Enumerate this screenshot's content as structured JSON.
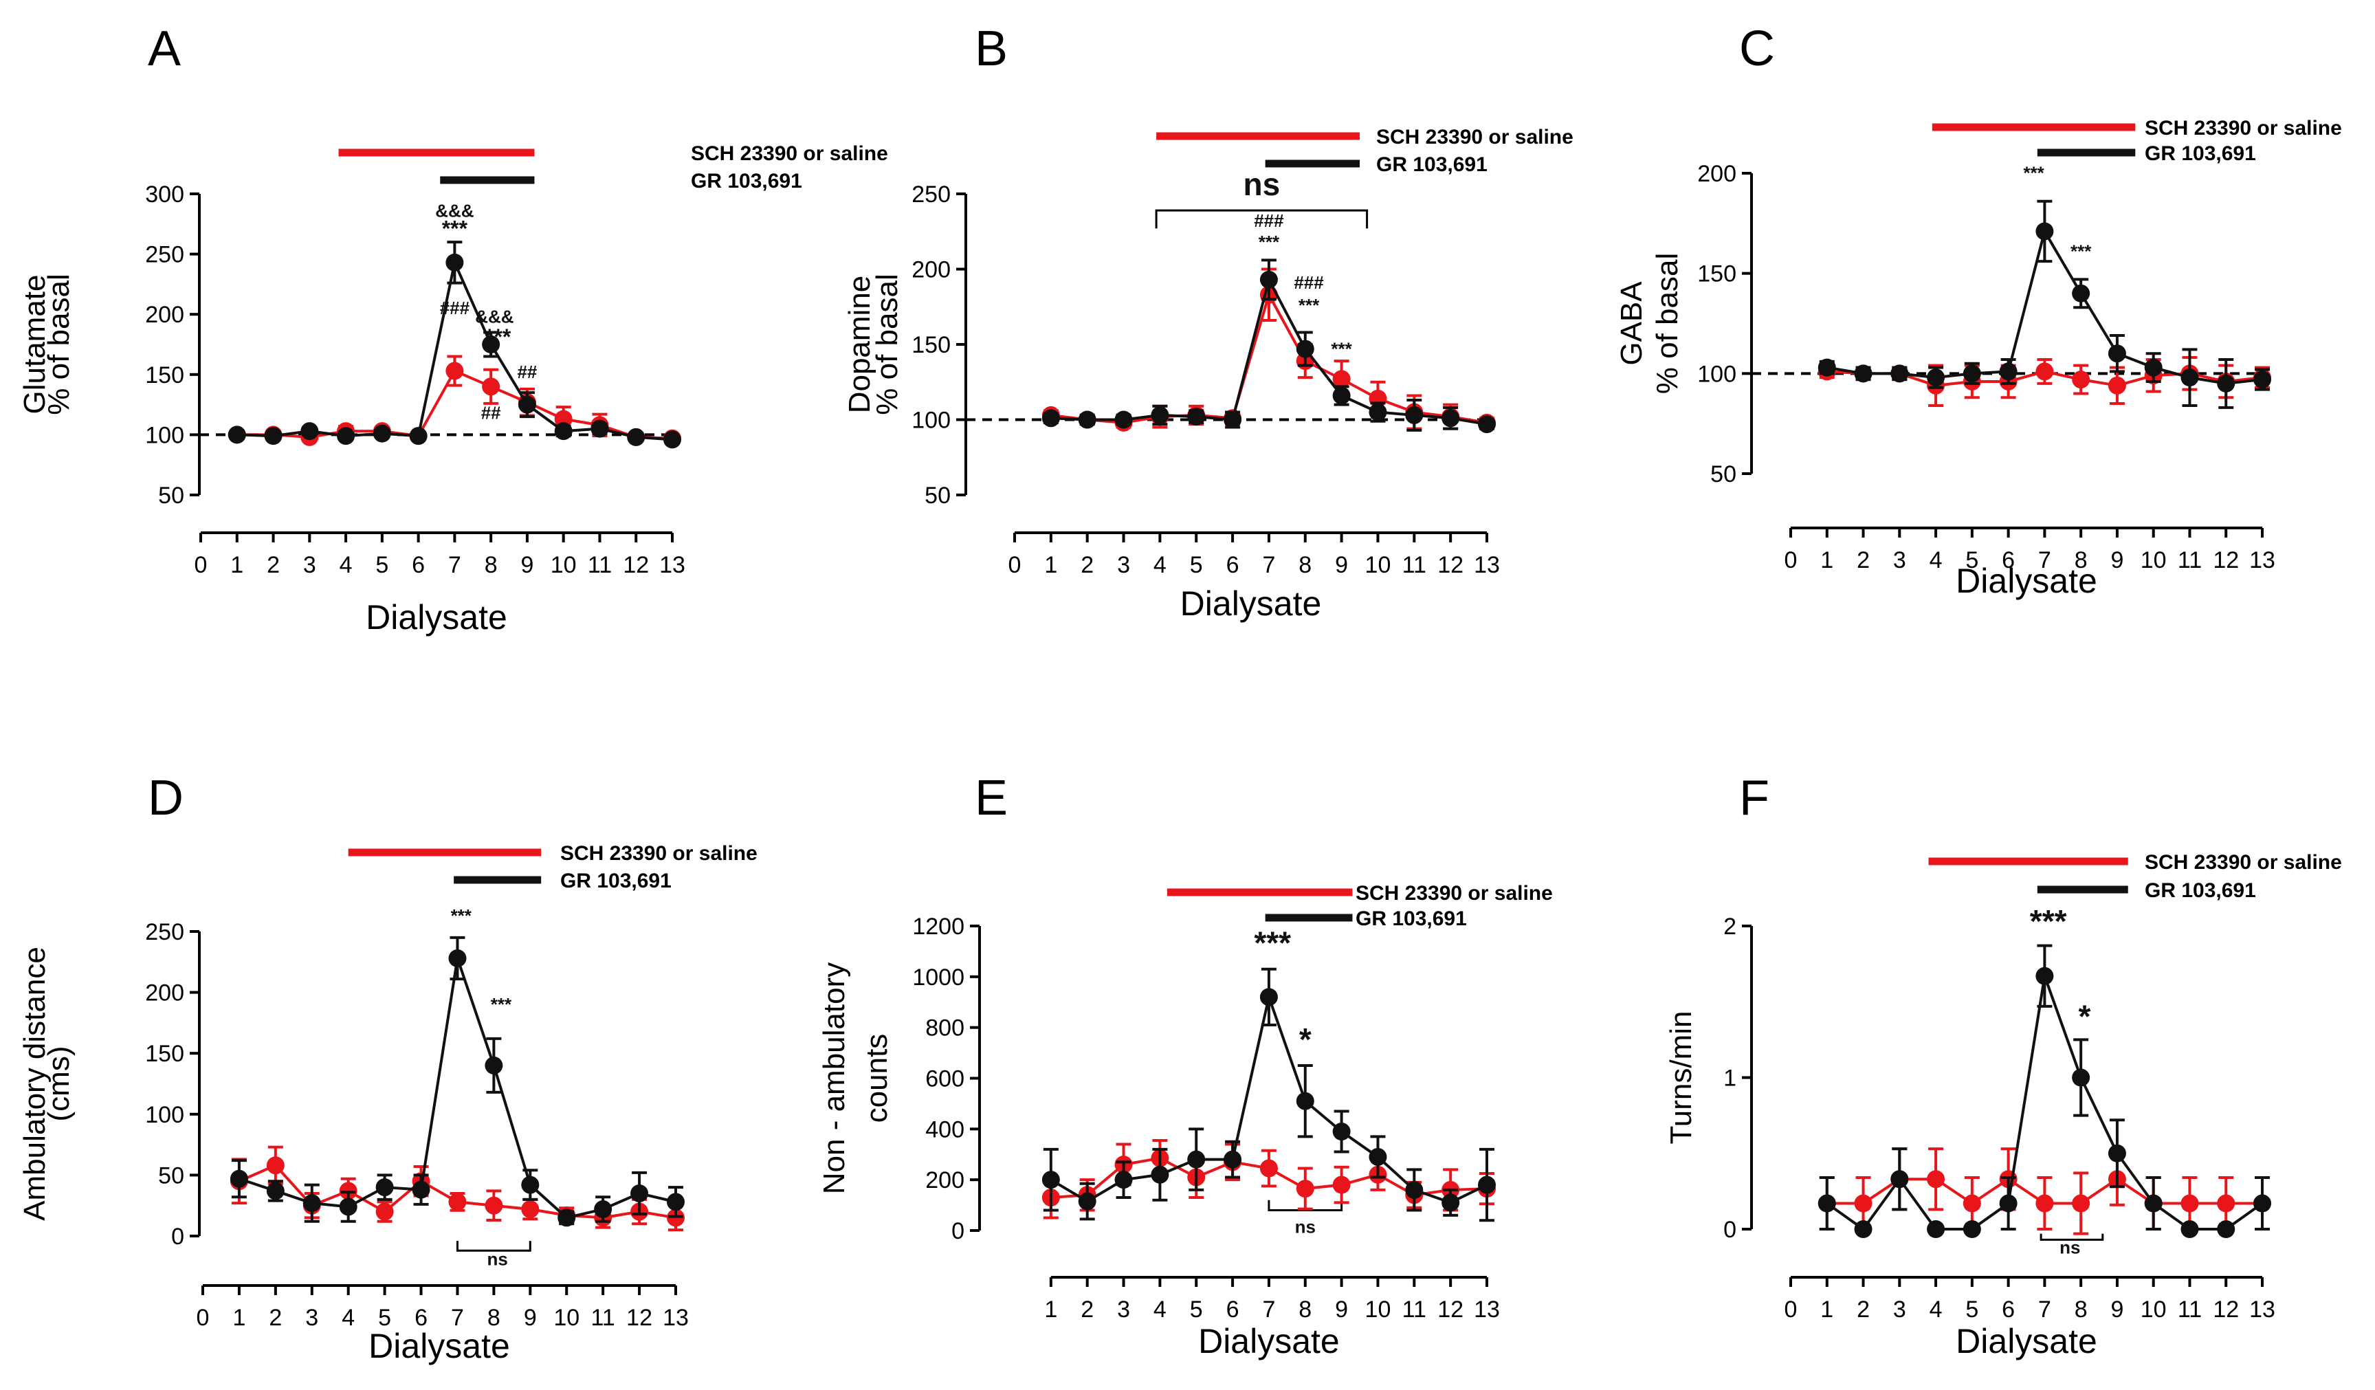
{
  "colors": {
    "black_series": "#111111",
    "red_series": "#e8161b",
    "axis": "#000000"
  },
  "bars": {
    "red_label": "SCH 23390 or saline",
    "black_label": "GR 103,691"
  },
  "chart_data": [
    {
      "panel": "A",
      "type": "line",
      "ylabel_lines": [
        "Glutamate",
        "% of basal"
      ],
      "xlabel": "Dialysate",
      "xlim": [
        0,
        13
      ],
      "xticks": [
        0,
        1,
        2,
        3,
        4,
        5,
        6,
        7,
        8,
        9,
        10,
        11,
        12,
        13
      ],
      "ylim": [
        50,
        300
      ],
      "yticks": [
        50,
        100,
        150,
        200,
        250,
        300
      ],
      "baseline": 100,
      "red_bar_range": [
        3.8,
        9.2
      ],
      "black_bar_range": [
        6.6,
        9.2
      ],
      "series": [
        {
          "name": "GR 103,691",
          "color": "#111111",
          "x": [
            1,
            2,
            3,
            4,
            5,
            6,
            7,
            8,
            9,
            10,
            11,
            12,
            13
          ],
          "values": [
            100,
            99,
            103,
            99,
            101,
            99,
            243,
            175,
            125,
            103,
            105,
            98,
            96
          ],
          "errors": [
            3,
            3,
            3,
            3,
            3,
            3,
            17,
            10,
            10,
            4,
            4,
            3,
            3
          ]
        },
        {
          "name": "SCH 23390 or saline",
          "color": "#e8161b",
          "x": [
            1,
            2,
            3,
            4,
            5,
            6,
            7,
            8,
            9,
            10,
            11,
            12,
            13
          ],
          "values": [
            100,
            100,
            98,
            103,
            103,
            99,
            153,
            140,
            127,
            113,
            108,
            98,
            97
          ],
          "errors": [
            3,
            3,
            3,
            4,
            3,
            3,
            12,
            14,
            11,
            10,
            9,
            3,
            3
          ]
        }
      ],
      "annotations": [
        {
          "text": "&&&",
          "x": 7,
          "y": 281,
          "size": "small",
          "color": "#111111"
        },
        {
          "text": "***",
          "x": 7,
          "y": 265,
          "size": "medium",
          "color": "#111111"
        },
        {
          "text": "&&&",
          "x": 8.1,
          "y": 193,
          "size": "small",
          "color": "#111111"
        },
        {
          "text": "***",
          "x": 8.2,
          "y": 175,
          "size": "medium",
          "color": "#111111"
        },
        {
          "text": "###",
          "x": 7,
          "y": 200,
          "size": "small",
          "color": "#111111"
        },
        {
          "text": "##",
          "x": 9,
          "y": 147,
          "size": "small",
          "color": "#111111"
        },
        {
          "text": "##",
          "x": 8,
          "y": 113,
          "size": "small",
          "color": "#111111"
        }
      ]
    },
    {
      "panel": "B",
      "type": "line",
      "ylabel_lines": [
        "Dopamine",
        "% of basal"
      ],
      "xlabel": "Dialysate",
      "xlim": [
        0,
        13
      ],
      "xticks": [
        0,
        1,
        2,
        3,
        4,
        5,
        6,
        7,
        8,
        9,
        10,
        11,
        12,
        13
      ],
      "ylim": [
        50,
        250
      ],
      "yticks": [
        50,
        100,
        150,
        200,
        250
      ],
      "baseline": 100,
      "red_bar_range": [
        3.9,
        9.5
      ],
      "black_bar_range": [
        6.9,
        9.5
      ],
      "series": [
        {
          "name": "GR 103,691",
          "color": "#111111",
          "x": [
            1,
            2,
            3,
            4,
            5,
            6,
            7,
            8,
            9,
            10,
            11,
            12,
            13
          ],
          "values": [
            101,
            100,
            100,
            103,
            102,
            100,
            193,
            147,
            116,
            105,
            103,
            101,
            97
          ],
          "errors": [
            3,
            3,
            3,
            6,
            4,
            5,
            13,
            11,
            6,
            6,
            10,
            7,
            3
          ]
        },
        {
          "name": "SCH 23390 or saline",
          "color": "#e8161b",
          "x": [
            1,
            2,
            3,
            4,
            5,
            6,
            7,
            8,
            9,
            10,
            11,
            12,
            13
          ],
          "values": [
            103,
            100,
            98,
            102,
            103,
            101,
            183,
            139,
            127,
            114,
            105,
            102,
            98
          ],
          "errors": [
            3,
            3,
            3,
            7,
            6,
            4,
            17,
            11,
            12,
            11,
            11,
            8,
            3
          ]
        }
      ],
      "annotations": [
        {
          "text": "###",
          "x": 7,
          "y": 228,
          "size": "small",
          "color": "#111111"
        },
        {
          "text": "***",
          "x": 7,
          "y": 214,
          "size": "small",
          "color": "#111111"
        },
        {
          "text": "###",
          "x": 8.1,
          "y": 187,
          "size": "small",
          "color": "#111111"
        },
        {
          "text": "***",
          "x": 8.1,
          "y": 172,
          "size": "small",
          "color": "#111111"
        },
        {
          "text": "***",
          "x": 9,
          "y": 143,
          "size": "small",
          "color": "#111111"
        },
        {
          "text": "ns",
          "x": 6.8,
          "y": 249,
          "size": "large",
          "color": "#111111"
        }
      ],
      "bracket": {
        "x1": 3.9,
        "x2": 9.7,
        "y": 239,
        "tick_to": 227
      }
    },
    {
      "panel": "C",
      "type": "line",
      "ylabel_lines": [
        "GABA",
        "% of basal"
      ],
      "xlabel": "Dialysate",
      "xlim": [
        0,
        13
      ],
      "xticks": [
        0,
        1,
        2,
        3,
        4,
        5,
        6,
        7,
        8,
        9,
        10,
        11,
        12,
        13
      ],
      "ylim": [
        50,
        200
      ],
      "yticks": [
        50,
        100,
        150,
        200
      ],
      "baseline": 100,
      "red_bar_range": [
        3.9,
        9.5
      ],
      "black_bar_range": [
        6.8,
        9.5
      ],
      "series": [
        {
          "name": "GR 103,691",
          "color": "#111111",
          "x": [
            1,
            2,
            3,
            4,
            5,
            6,
            7,
            8,
            9,
            10,
            11,
            12,
            13
          ],
          "values": [
            103,
            100,
            100,
            98,
            100,
            101,
            171,
            140,
            110,
            103,
            98,
            95,
            97
          ],
          "errors": [
            3,
            3,
            3,
            5,
            5,
            6,
            15,
            7,
            9,
            7,
            14,
            12,
            5
          ]
        },
        {
          "name": "SCH 23390 or saline",
          "color": "#e8161b",
          "x": [
            1,
            2,
            3,
            4,
            5,
            6,
            7,
            8,
            9,
            10,
            11,
            12,
            13
          ],
          "values": [
            101,
            100,
            100,
            94,
            96,
            96,
            101,
            97,
            94,
            99,
            100,
            96,
            98
          ],
          "errors": [
            3,
            3,
            3,
            10,
            8,
            8,
            6,
            7,
            9,
            8,
            8,
            8,
            5
          ]
        }
      ],
      "annotations": [
        {
          "text": "***",
          "x": 6.7,
          "y": 197,
          "size": "small",
          "color": "#111111"
        },
        {
          "text": "***",
          "x": 8,
          "y": 158,
          "size": "small",
          "color": "#111111"
        }
      ]
    },
    {
      "panel": "D",
      "type": "line",
      "ylabel_lines": [
        "Ambulatory distance",
        "(cms)"
      ],
      "xlabel": "Dialysate",
      "xlim": [
        0,
        13
      ],
      "xticks": [
        0,
        1,
        2,
        3,
        4,
        5,
        6,
        7,
        8,
        9,
        10,
        11,
        12,
        13
      ],
      "ylim": [
        0,
        250
      ],
      "yticks": [
        0,
        50,
        100,
        150,
        200,
        250
      ],
      "red_bar_range": [
        4,
        9.3
      ],
      "black_bar_range": [
        6.9,
        9.3
      ],
      "series": [
        {
          "name": "GR 103,691",
          "color": "#111111",
          "x": [
            1,
            2,
            3,
            4,
            5,
            6,
            7,
            8,
            9,
            10,
            11,
            12,
            13
          ],
          "values": [
            47,
            37,
            27,
            24,
            40,
            38,
            228,
            140,
            42,
            15,
            22,
            35,
            28
          ],
          "errors": [
            15,
            8,
            15,
            12,
            10,
            12,
            17,
            22,
            12,
            5,
            10,
            17,
            12
          ]
        },
        {
          "name": "SCH 23390 or saline",
          "color": "#e8161b",
          "x": [
            1,
            2,
            3,
            4,
            5,
            6,
            7,
            8,
            9,
            10,
            11,
            12,
            13
          ],
          "values": [
            45,
            58,
            25,
            37,
            20,
            45,
            28,
            25,
            22,
            17,
            15,
            20,
            15
          ],
          "errors": [
            18,
            15,
            10,
            10,
            8,
            12,
            7,
            12,
            8,
            6,
            8,
            10,
            10
          ]
        }
      ],
      "annotations": [
        {
          "text": "***",
          "x": 7.1,
          "y": 258,
          "size": "small",
          "color": "#111111"
        },
        {
          "text": "***",
          "x": 8.2,
          "y": 185,
          "size": "small",
          "color": "#111111"
        },
        {
          "text": "ns",
          "x": 8.1,
          "y": -24,
          "size": "small",
          "color": "#111111"
        }
      ],
      "bracket_below": {
        "x1": 7,
        "x2": 9,
        "y": -12,
        "tick_to": -4
      }
    },
    {
      "panel": "E",
      "type": "line",
      "ylabel_lines": [
        "Non - ambulatory",
        "counts"
      ],
      "xlabel": "Dialysate",
      "xlim": [
        1,
        13
      ],
      "xticks": [
        1,
        2,
        3,
        4,
        5,
        6,
        7,
        8,
        9,
        10,
        11,
        12,
        13
      ],
      "ylim": [
        0,
        1200
      ],
      "yticks": [
        0,
        200,
        400,
        600,
        800,
        1000,
        1200
      ],
      "red_bar_range": [
        4.2,
        9.3
      ],
      "black_bar_range": [
        6.9,
        9.3
      ],
      "series": [
        {
          "name": "GR 103,691",
          "color": "#111111",
          "x": [
            1,
            2,
            3,
            4,
            5,
            6,
            7,
            8,
            9,
            10,
            11,
            12,
            13
          ],
          "values": [
            200,
            115,
            200,
            220,
            280,
            280,
            920,
            510,
            390,
            290,
            160,
            110,
            180
          ],
          "errors": [
            120,
            70,
            70,
            100,
            120,
            70,
            110,
            140,
            80,
            80,
            80,
            50,
            140
          ]
        },
        {
          "name": "SCH 23390 or saline",
          "color": "#e8161b",
          "x": [
            1,
            2,
            3,
            4,
            5,
            6,
            7,
            8,
            9,
            10,
            11,
            12,
            13
          ],
          "values": [
            130,
            140,
            260,
            285,
            210,
            270,
            245,
            165,
            180,
            220,
            140,
            160,
            165
          ],
          "errors": [
            80,
            60,
            80,
            70,
            80,
            70,
            70,
            80,
            70,
            60,
            50,
            80,
            60
          ]
        }
      ],
      "annotations": [
        {
          "text": "***",
          "x": 7.1,
          "y": 1090,
          "size": "large",
          "color": "#111111"
        },
        {
          "text": "*",
          "x": 8,
          "y": 710,
          "size": "large",
          "color": "#111111"
        },
        {
          "text": "ns",
          "x": 8,
          "y": -10,
          "size": "small",
          "color": "#111111"
        }
      ],
      "bracket_below": {
        "x1": 7,
        "x2": 9,
        "y": 80,
        "tick_to": 120
      }
    },
    {
      "panel": "F",
      "type": "line",
      "ylabel_lines": [
        "Turns/min"
      ],
      "xlabel": "Dialysate",
      "xlim": [
        0,
        13
      ],
      "xticks": [
        0,
        1,
        2,
        3,
        4,
        5,
        6,
        7,
        8,
        9,
        10,
        11,
        12,
        13
      ],
      "ylim": [
        0,
        2
      ],
      "yticks": [
        0,
        1,
        2
      ],
      "red_bar_range": [
        3.8,
        9.3
      ],
      "black_bar_range": [
        6.8,
        9.3
      ],
      "series": [
        {
          "name": "GR 103,691",
          "color": "#111111",
          "x": [
            1,
            2,
            3,
            4,
            5,
            6,
            7,
            8,
            9,
            10,
            11,
            12,
            13
          ],
          "values": [
            0.17,
            0,
            0.33,
            0,
            0,
            0.17,
            1.67,
            1.0,
            0.5,
            0.17,
            0,
            0,
            0.17
          ],
          "errors": [
            0.17,
            0,
            0.2,
            0,
            0,
            0.17,
            0.2,
            0.25,
            0.22,
            0.17,
            0,
            0,
            0.17
          ]
        },
        {
          "name": "SCH 23390 or saline",
          "color": "#e8161b",
          "x": [
            1,
            2,
            3,
            4,
            5,
            6,
            7,
            8,
            9,
            10,
            11,
            12,
            13
          ],
          "values": [
            0.17,
            0.17,
            0.33,
            0.33,
            0.17,
            0.33,
            0.17,
            0.17,
            0.33,
            0.17,
            0.17,
            0.17,
            0.17
          ],
          "errors": [
            0.17,
            0.17,
            0.2,
            0.2,
            0.17,
            0.2,
            0.17,
            0.2,
            0.17,
            0.17,
            0.17,
            0.17,
            0.17
          ]
        }
      ],
      "annotations": [
        {
          "text": "***",
          "x": 7.1,
          "y": 1.96,
          "size": "large",
          "color": "#111111"
        },
        {
          "text": "*",
          "x": 8.1,
          "y": 1.33,
          "size": "large",
          "color": "#111111"
        },
        {
          "text": "ns",
          "x": 7.7,
          "y": -0.16,
          "size": "small",
          "color": "#111111"
        }
      ],
      "bracket_below": {
        "x1": 6.9,
        "x2": 8.6,
        "y": -0.07,
        "tick_to": -0.03
      }
    }
  ]
}
